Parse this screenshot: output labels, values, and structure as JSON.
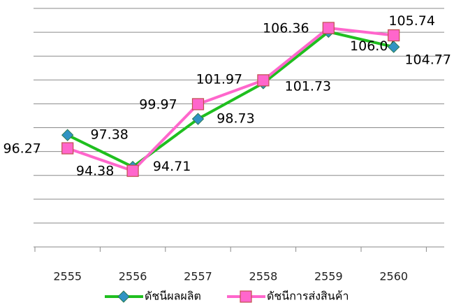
{
  "chart_data": {
    "type": "line",
    "categories": [
      "2555",
      "2556",
      "2557",
      "2558",
      "2559",
      "2560"
    ],
    "series": [
      {
        "name": "ดัชนีผลผลิต",
        "color": "#1fbf1f",
        "marker": "diamond",
        "marker_color": "#2f93c4",
        "values": [
          97.38,
          94.71,
          98.73,
          101.73,
          106.04,
          104.77
        ]
      },
      {
        "name": "ดัชนีการส่งสินค้า",
        "color": "#ff66cc",
        "marker": "square",
        "marker_color": "#ff66cc",
        "values": [
          96.27,
          94.38,
          99.97,
          101.97,
          106.36,
          105.74
        ]
      }
    ],
    "ylim": [
      88,
      108
    ],
    "yticks": [
      88,
      90,
      92,
      94,
      96,
      98,
      100,
      102,
      104,
      106,
      108
    ],
    "grid": true,
    "legend": "bottom"
  }
}
